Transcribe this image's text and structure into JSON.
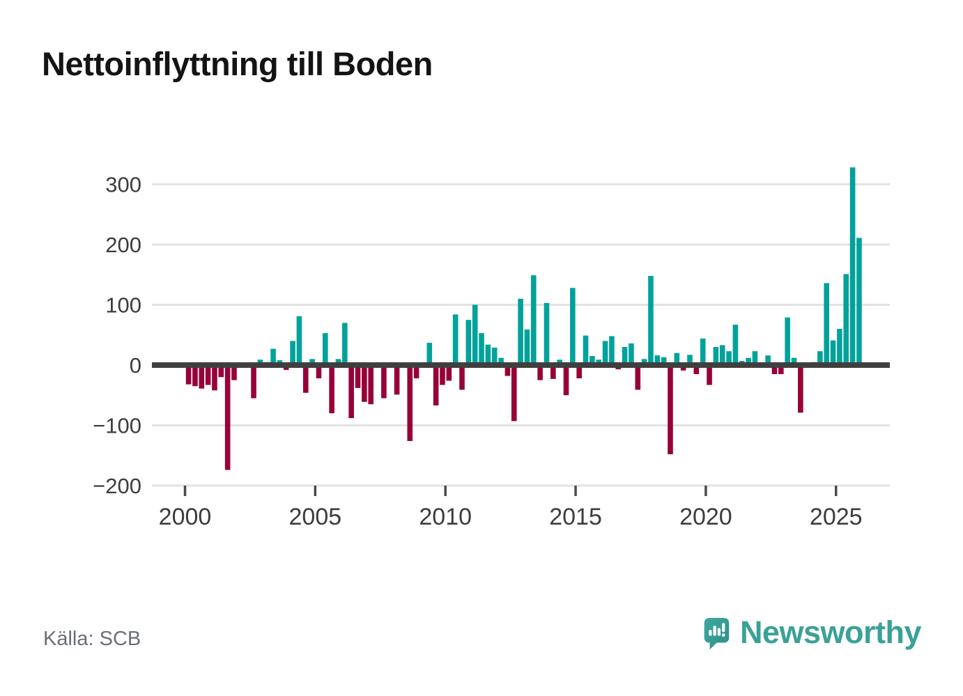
{
  "header": {
    "title": "Nettoinflyttning till Boden"
  },
  "chart_data": {
    "type": "bar",
    "title": "Nettoinflyttning till Boden",
    "xlabel": "",
    "ylabel": "",
    "frequency": "quarterly",
    "x_start": "2000-Q1",
    "x_end": "2025-Q4",
    "x_ticks": [
      2000,
      2005,
      2010,
      2015,
      2020,
      2025
    ],
    "y_ticks": [
      300,
      200,
      100,
      0,
      -100,
      -200
    ],
    "ylim": [
      -200,
      340
    ],
    "grid": true,
    "legend_position": "none",
    "colors": {
      "positive": "#00a29a",
      "negative": "#970038",
      "zero_line": "#3f3f3f",
      "gridline": "#e3e3e3",
      "tick_label": "#3c3c3c"
    },
    "values": [
      -32,
      -35,
      -39,
      -33,
      -42,
      -20,
      -174,
      -25,
      0,
      0,
      -55,
      9,
      5,
      27,
      8,
      -8,
      40,
      81,
      -46,
      10,
      -22,
      53,
      -80,
      10,
      70,
      -88,
      -38,
      -61,
      -65,
      0,
      -55,
      0,
      -49,
      0,
      -126,
      -22,
      0,
      37,
      -67,
      -33,
      -26,
      84,
      -41,
      75,
      100,
      53,
      34,
      29,
      12,
      -18,
      -93,
      110,
      59,
      149,
      -25,
      103,
      -23,
      9,
      -50,
      128,
      -22,
      49,
      15,
      9,
      40,
      48,
      -7,
      30,
      36,
      -41,
      10,
      148,
      16,
      13,
      -148,
      20,
      -9,
      17,
      -15,
      44,
      -33,
      30,
      33,
      23,
      67,
      7,
      12,
      23,
      0,
      16,
      -15,
      -15,
      79,
      12,
      -79,
      -4,
      5,
      23,
      136,
      41,
      60,
      151,
      328,
      211
    ]
  },
  "footer": {
    "source_label": "Källa: SCB",
    "brand_name": "Newsworthy"
  }
}
